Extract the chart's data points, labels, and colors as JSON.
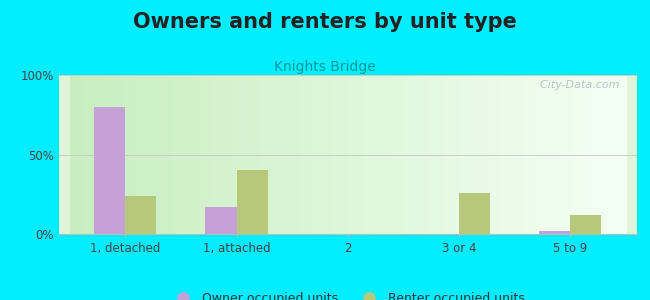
{
  "title": "Owners and renters by unit type",
  "subtitle": "Knights Bridge",
  "categories": [
    "1, detached",
    "1, attached",
    "2",
    "3 or 4",
    "5 to 9"
  ],
  "owner_values": [
    80,
    17,
    0,
    0,
    2
  ],
  "renter_values": [
    24,
    40,
    0,
    26,
    12
  ],
  "owner_color": "#c8a0d8",
  "renter_color": "#b8c87a",
  "background_outer": "#00eeff",
  "ylim": [
    0,
    100
  ],
  "yticks": [
    0,
    50,
    100
  ],
  "ytick_labels": [
    "0%",
    "50%",
    "100%"
  ],
  "title_fontsize": 15,
  "subtitle_fontsize": 10,
  "legend_label_owner": "Owner occupied units",
  "legend_label_renter": "Renter occupied units",
  "bar_width": 0.28,
  "grid_color": "#cccccc",
  "title_color": "#222222",
  "subtitle_color": "#009999",
  "watermark_color": "#aaaaaa",
  "bg_top_left": "#d8f0d0",
  "bg_bottom_right": "#f8fff8"
}
